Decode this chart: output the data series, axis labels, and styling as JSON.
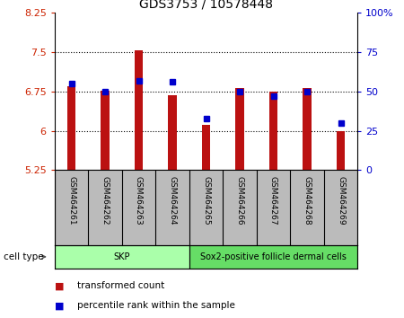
{
  "title": "GDS3753 / 10578448",
  "samples": [
    "GSM464261",
    "GSM464262",
    "GSM464263",
    "GSM464264",
    "GSM464265",
    "GSM464266",
    "GSM464267",
    "GSM464268",
    "GSM464269"
  ],
  "transformed_count": [
    6.85,
    6.76,
    7.53,
    6.68,
    6.12,
    6.82,
    6.74,
    6.81,
    5.99
  ],
  "percentile_rank": [
    55,
    50,
    57,
    56,
    33,
    50,
    47,
    50,
    30
  ],
  "ylim_left": [
    5.25,
    8.25
  ],
  "ylim_right": [
    0,
    100
  ],
  "yticks_left": [
    5.25,
    6.0,
    6.75,
    7.5,
    8.25
  ],
  "ytick_labels_left": [
    "5.25",
    "6",
    "6.75",
    "7.5",
    "8.25"
  ],
  "yticks_right": [
    0,
    25,
    50,
    75,
    100
  ],
  "ytick_labels_right": [
    "0",
    "25",
    "50",
    "75",
    "100%"
  ],
  "bar_bottom": 5.25,
  "bar_color": "#bb1111",
  "dot_color": "#0000cc",
  "cell_types": [
    {
      "label": "SKP",
      "start": 0,
      "end": 4,
      "color": "#aaffaa"
    },
    {
      "label": "Sox2-positive follicle dermal cells",
      "start": 4,
      "end": 9,
      "color": "#66dd66"
    }
  ],
  "cell_type_label": "cell type",
  "legend_items": [
    {
      "color": "#bb1111",
      "label": "transformed count"
    },
    {
      "color": "#0000cc",
      "label": "percentile rank within the sample"
    }
  ],
  "background_color": "#ffffff",
  "tick_color_left": "#cc2200",
  "tick_color_right": "#0000cc",
  "sample_bg_color": "#bbbbbb",
  "bar_width": 0.25
}
